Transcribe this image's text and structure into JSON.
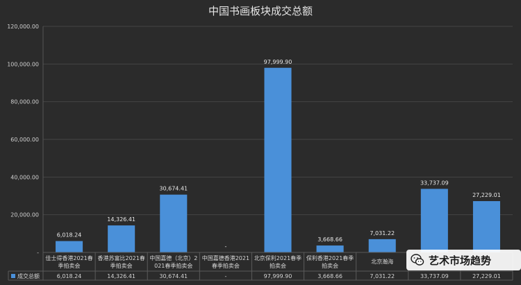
{
  "chart_data": {
    "type": "bar",
    "title": "中国书画板块成交总额",
    "categories": [
      [
        "佳士得香港2021春",
        "季拍卖会"
      ],
      [
        "香港苏富比2021春",
        "季拍卖会"
      ],
      [
        "中国嘉德（北京）2",
        "021春季拍卖会"
      ],
      [
        "中国嘉德香港2021",
        "春季拍卖会"
      ],
      [
        "北京保利2021春季",
        "拍卖会"
      ],
      [
        "保利香港2021春季",
        "拍卖会"
      ],
      [
        "北京瀚海",
        ""
      ],
      [
        "",
        ""
      ],
      [
        "",
        ""
      ]
    ],
    "series": [
      {
        "name": "成交总额",
        "values": [
          6018.24,
          14326.41,
          30674.41,
          null,
          97999.9,
          3668.66,
          7031.22,
          33737.09,
          27229.01
        ],
        "labels": [
          "6,018.24",
          "14,326.41",
          "30,674.41",
          "-",
          "97,999.90",
          "3,668.66",
          "7,031.22",
          "33,737.09",
          "27,229.01"
        ]
      }
    ],
    "y_ticks": [
      "-",
      "20,000.00",
      "40,000.00",
      "60,000.00",
      "80,000.00",
      "100,000.00",
      "120,000.00"
    ],
    "ylim": [
      0,
      120000
    ],
    "grid": true,
    "legend": "data-table",
    "bar_color": "#4a90d9"
  },
  "watermark": {
    "text": "艺术市场趋势",
    "icon": "wechat-icon"
  }
}
